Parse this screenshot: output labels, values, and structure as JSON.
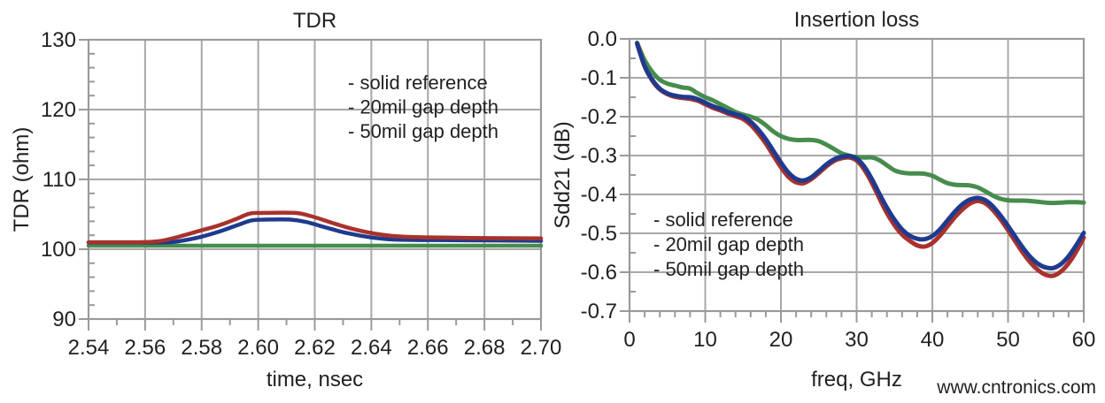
{
  "page": {
    "watermark": "www.cntronics.com",
    "background": "#ffffff"
  },
  "style": {
    "grid_color": "#a8a8a8",
    "axis_color": "#9a9a9a",
    "text_color": "#231f20",
    "watermark_color": "#bfe5b6",
    "series_green": "#478c4d",
    "series_blue": "#1f3a8f",
    "series_red": "#a8322c",
    "legend_green": "#2a7c39",
    "legend_blue": "#273390",
    "legend_red": "#f01818"
  },
  "chart_data": [
    {
      "type": "line",
      "title": "TDR",
      "xlabel": "time, nsec",
      "ylabel": "TDR (ohm)",
      "xlim": [
        2.54,
        2.7
      ],
      "ylim": [
        90,
        130
      ],
      "grid": true,
      "x_minor_step": 0.01,
      "y_minor_step": 2,
      "xticks": {
        "values": [
          2.54,
          2.56,
          2.58,
          2.6,
          2.62,
          2.64,
          2.66,
          2.68,
          2.7
        ],
        "labels": [
          "2.54",
          "2.56",
          "2.58",
          "2.60",
          "2.62",
          "2.64",
          "2.66",
          "2.68",
          "2.70"
        ]
      },
      "yticks": {
        "values": [
          90,
          100,
          110,
          120,
          130
        ],
        "labels": [
          "90",
          "100",
          "110",
          "120",
          "130"
        ]
      },
      "legend": {
        "position": "top-right-inside",
        "items": [
          {
            "label": "- solid reference",
            "color": "#2a7c39"
          },
          {
            "label": "- 20mil gap depth",
            "color": "#273390"
          },
          {
            "label": "- 50mil gap depth",
            "color": "#f01818"
          }
        ]
      },
      "series": [
        {
          "name": "solid reference",
          "color": "#478c4d",
          "points": [
            [
              2.54,
              100.5
            ],
            [
              2.7,
              100.5
            ]
          ]
        },
        {
          "name": "20mil gap depth",
          "color": "#1f3a8f",
          "points": [
            [
              2.54,
              100.95
            ],
            [
              2.562,
              100.95
            ],
            [
              2.57,
              101.05
            ],
            [
              2.578,
              101.6
            ],
            [
              2.586,
              102.5
            ],
            [
              2.593,
              103.5
            ],
            [
              2.598,
              104.15
            ],
            [
              2.604,
              104.25
            ],
            [
              2.611,
              104.25
            ],
            [
              2.617,
              103.9
            ],
            [
              2.624,
              103.1
            ],
            [
              2.631,
              102.35
            ],
            [
              2.639,
              101.75
            ],
            [
              2.647,
              101.4
            ],
            [
              2.658,
              101.32
            ],
            [
              2.672,
              101.28
            ],
            [
              2.7,
              101.2
            ]
          ]
        },
        {
          "name": "50mil gap depth",
          "color": "#a8322c",
          "points": [
            [
              2.54,
              101.0
            ],
            [
              2.558,
              101.0
            ],
            [
              2.565,
              101.15
            ],
            [
              2.572,
              101.8
            ],
            [
              2.579,
              102.6
            ],
            [
              2.586,
              103.4
            ],
            [
              2.592,
              104.3
            ],
            [
              2.597,
              105.1
            ],
            [
              2.602,
              105.2
            ],
            [
              2.613,
              105.2
            ],
            [
              2.619,
              104.7
            ],
            [
              2.626,
              103.8
            ],
            [
              2.633,
              102.95
            ],
            [
              2.641,
              102.25
            ],
            [
              2.649,
              101.85
            ],
            [
              2.66,
              101.7
            ],
            [
              2.675,
              101.62
            ],
            [
              2.7,
              101.55
            ]
          ]
        }
      ]
    },
    {
      "type": "line",
      "title": "Insertion loss",
      "xlabel": "freq, GHz",
      "ylabel": "Sdd21 (dB)",
      "xlim": [
        0,
        60
      ],
      "ylim": [
        -0.7,
        0.0
      ],
      "grid": true,
      "x_minor_step": 2,
      "y_minor_step": 0.05,
      "xticks": {
        "values": [
          0,
          10,
          20,
          30,
          40,
          50,
          60
        ],
        "labels": [
          "0",
          "10",
          "20",
          "30",
          "40",
          "50",
          "60"
        ]
      },
      "yticks": {
        "values": [
          0,
          -0.1,
          -0.2,
          -0.3,
          -0.4,
          -0.5,
          -0.6,
          -0.7
        ],
        "labels": [
          "0.0",
          "-0.1",
          "-0.2",
          "-0.3",
          "-0.4",
          "-0.5",
          "-0.6",
          "-0.7"
        ]
      },
      "legend": {
        "position": "middle-left-inside",
        "items": [
          {
            "label": "- solid reference",
            "color": "#2a7c39"
          },
          {
            "label": "- 20mil gap depth",
            "color": "#273390"
          },
          {
            "label": "- 50mil gap depth",
            "color": "#f01818"
          }
        ]
      },
      "series": [
        {
          "name": "solid reference",
          "color": "#478c4d",
          "points": [
            [
              1,
              -0.01
            ],
            [
              2,
              -0.055
            ],
            [
              3,
              -0.085
            ],
            [
              4,
              -0.105
            ],
            [
              5,
              -0.115
            ],
            [
              6,
              -0.12
            ],
            [
              7,
              -0.125
            ],
            [
              8,
              -0.128
            ],
            [
              9,
              -0.14
            ],
            [
              10,
              -0.15
            ],
            [
              11,
              -0.158
            ],
            [
              12,
              -0.168
            ],
            [
              13,
              -0.178
            ],
            [
              14,
              -0.188
            ],
            [
              15,
              -0.195
            ],
            [
              16,
              -0.2
            ],
            [
              17,
              -0.208
            ],
            [
              18,
              -0.222
            ],
            [
              19,
              -0.238
            ],
            [
              20,
              -0.25
            ],
            [
              21,
              -0.257
            ],
            [
              22,
              -0.26
            ],
            [
              23,
              -0.26
            ],
            [
              24,
              -0.26
            ],
            [
              25,
              -0.263
            ],
            [
              26,
              -0.272
            ],
            [
              27,
              -0.283
            ],
            [
              28,
              -0.294
            ],
            [
              29,
              -0.3
            ],
            [
              30,
              -0.304
            ],
            [
              31,
              -0.305
            ],
            [
              32,
              -0.305
            ],
            [
              33,
              -0.312
            ],
            [
              34,
              -0.325
            ],
            [
              35,
              -0.338
            ],
            [
              36,
              -0.344
            ],
            [
              37,
              -0.346
            ],
            [
              38,
              -0.346
            ],
            [
              39,
              -0.347
            ],
            [
              40,
              -0.352
            ],
            [
              41,
              -0.362
            ],
            [
              42,
              -0.371
            ],
            [
              43,
              -0.375
            ],
            [
              44,
              -0.376
            ],
            [
              45,
              -0.377
            ],
            [
              46,
              -0.382
            ],
            [
              47,
              -0.392
            ],
            [
              48,
              -0.403
            ],
            [
              49,
              -0.411
            ],
            [
              50,
              -0.415
            ],
            [
              51,
              -0.416
            ],
            [
              52,
              -0.416
            ],
            [
              53,
              -0.417
            ],
            [
              54,
              -0.419
            ],
            [
              55,
              -0.421
            ],
            [
              56,
              -0.422
            ],
            [
              57,
              -0.421
            ],
            [
              58,
              -0.42
            ],
            [
              59,
              -0.42
            ],
            [
              60,
              -0.421
            ]
          ]
        },
        {
          "name": "50mil gap depth",
          "color": "#a8322c",
          "points": [
            [
              1,
              -0.012
            ],
            [
              2,
              -0.071
            ],
            [
              3,
              -0.107
            ],
            [
              4,
              -0.13
            ],
            [
              5,
              -0.142
            ],
            [
              6,
              -0.149
            ],
            [
              7,
              -0.152
            ],
            [
              8,
              -0.154
            ],
            [
              9,
              -0.159
            ],
            [
              10,
              -0.168
            ],
            [
              11,
              -0.177
            ],
            [
              12,
              -0.184
            ],
            [
              13,
              -0.192
            ],
            [
              14,
              -0.199
            ],
            [
              15,
              -0.206
            ],
            [
              16,
              -0.221
            ],
            [
              17,
              -0.243
            ],
            [
              18,
              -0.269
            ],
            [
              19,
              -0.3
            ],
            [
              20,
              -0.33
            ],
            [
              21,
              -0.355
            ],
            [
              22,
              -0.369
            ],
            [
              23,
              -0.371
            ],
            [
              24,
              -0.361
            ],
            [
              25,
              -0.345
            ],
            [
              26,
              -0.328
            ],
            [
              27,
              -0.314
            ],
            [
              28,
              -0.307
            ],
            [
              29,
              -0.305
            ],
            [
              30,
              -0.313
            ],
            [
              31,
              -0.336
            ],
            [
              32,
              -0.37
            ],
            [
              33,
              -0.41
            ],
            [
              34,
              -0.448
            ],
            [
              35,
              -0.479
            ],
            [
              36,
              -0.503
            ],
            [
              37,
              -0.519
            ],
            [
              38,
              -0.531
            ],
            [
              39,
              -0.534
            ],
            [
              40,
              -0.525
            ],
            [
              41,
              -0.506
            ],
            [
              42,
              -0.482
            ],
            [
              43,
              -0.458
            ],
            [
              44,
              -0.438
            ],
            [
              45,
              -0.423
            ],
            [
              46,
              -0.417
            ],
            [
              47,
              -0.423
            ],
            [
              48,
              -0.44
            ],
            [
              49,
              -0.464
            ],
            [
              50,
              -0.492
            ],
            [
              51,
              -0.522
            ],
            [
              52,
              -0.551
            ],
            [
              53,
              -0.576
            ],
            [
              54,
              -0.595
            ],
            [
              55,
              -0.607
            ],
            [
              56,
              -0.609
            ],
            [
              57,
              -0.598
            ],
            [
              58,
              -0.577
            ],
            [
              59,
              -0.547
            ],
            [
              60,
              -0.511
            ]
          ]
        },
        {
          "name": "20mil gap depth",
          "color": "#1f3a8f",
          "points": [
            [
              1,
              -0.012
            ],
            [
              2,
              -0.07
            ],
            [
              3,
              -0.105
            ],
            [
              4,
              -0.128
            ],
            [
              5,
              -0.14
            ],
            [
              6,
              -0.146
            ],
            [
              7,
              -0.149
            ],
            [
              8,
              -0.15
            ],
            [
              9,
              -0.155
            ],
            [
              10,
              -0.164
            ],
            [
              11,
              -0.173
            ],
            [
              12,
              -0.18
            ],
            [
              13,
              -0.188
            ],
            [
              14,
              -0.194
            ],
            [
              15,
              -0.2
            ],
            [
              16,
              -0.213
            ],
            [
              17,
              -0.233
            ],
            [
              18,
              -0.258
            ],
            [
              19,
              -0.288
            ],
            [
              20,
              -0.318
            ],
            [
              21,
              -0.344
            ],
            [
              22,
              -0.36
            ],
            [
              23,
              -0.364
            ],
            [
              24,
              -0.356
            ],
            [
              25,
              -0.34
            ],
            [
              26,
              -0.323
            ],
            [
              27,
              -0.31
            ],
            [
              28,
              -0.303
            ],
            [
              29,
              -0.301
            ],
            [
              30,
              -0.308
            ],
            [
              31,
              -0.328
            ],
            [
              32,
              -0.36
            ],
            [
              33,
              -0.398
            ],
            [
              34,
              -0.434
            ],
            [
              35,
              -0.465
            ],
            [
              36,
              -0.49
            ],
            [
              37,
              -0.506
            ],
            [
              38,
              -0.514
            ],
            [
              39,
              -0.515
            ],
            [
              40,
              -0.507
            ],
            [
              41,
              -0.49
            ],
            [
              42,
              -0.467
            ],
            [
              43,
              -0.444
            ],
            [
              44,
              -0.425
            ],
            [
              45,
              -0.413
            ],
            [
              46,
              -0.409
            ],
            [
              47,
              -0.415
            ],
            [
              48,
              -0.431
            ],
            [
              49,
              -0.454
            ],
            [
              50,
              -0.481
            ],
            [
              51,
              -0.51
            ],
            [
              52,
              -0.538
            ],
            [
              53,
              -0.562
            ],
            [
              54,
              -0.579
            ],
            [
              55,
              -0.588
            ],
            [
              56,
              -0.589
            ],
            [
              57,
              -0.579
            ],
            [
              58,
              -0.559
            ],
            [
              59,
              -0.531
            ],
            [
              60,
              -0.499
            ]
          ]
        }
      ]
    }
  ]
}
